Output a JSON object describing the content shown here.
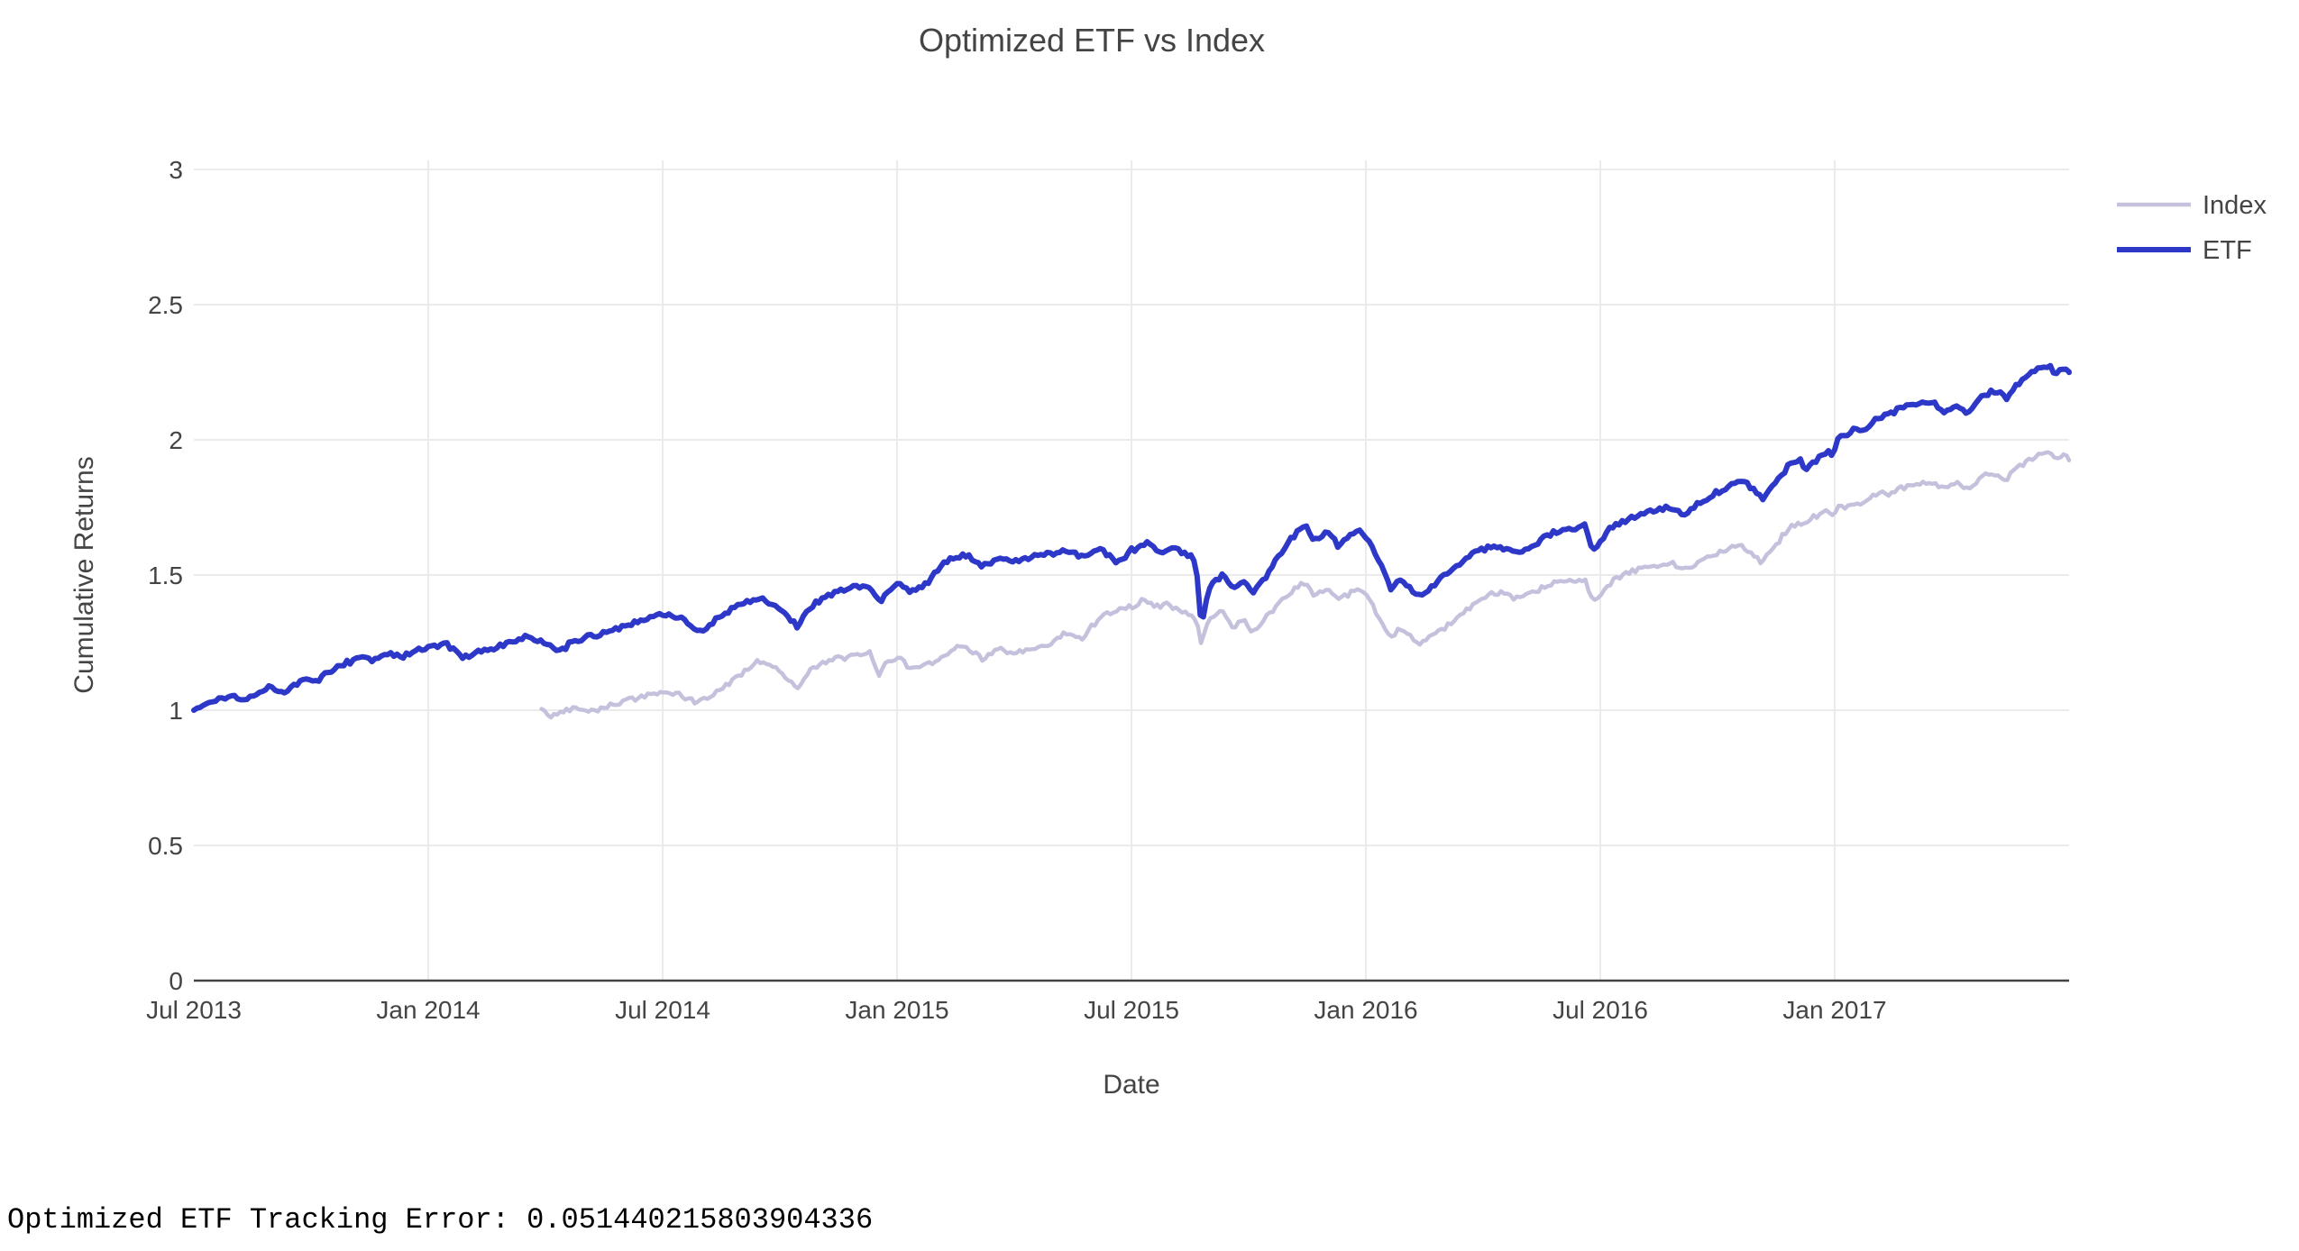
{
  "title": "Optimized ETF vs Index",
  "footer": {
    "tracking_error_text": "Optimized ETF Tracking Error: 0.051440215803904336"
  },
  "chart_data": {
    "type": "line",
    "title": "Optimized ETF vs Index",
    "xlabel": "Date",
    "ylabel": "Cumulative Returns",
    "x_unit": "months since Jul 2013",
    "xlim": [
      0,
      48
    ],
    "ylim": [
      0,
      3
    ],
    "grid": true,
    "legend_position": "right-top",
    "x_ticks": [
      {
        "m": 0,
        "label": "Jul 2013"
      },
      {
        "m": 6,
        "label": "Jan 2014"
      },
      {
        "m": 12,
        "label": "Jul 2014"
      },
      {
        "m": 18,
        "label": "Jan 2015"
      },
      {
        "m": 24,
        "label": "Jul 2015"
      },
      {
        "m": 30,
        "label": "Jan 2016"
      },
      {
        "m": 36,
        "label": "Jul 2016"
      },
      {
        "m": 42,
        "label": "Jan 2017"
      }
    ],
    "y_ticks": [
      {
        "v": 0,
        "label": "0"
      },
      {
        "v": 0.5,
        "label": "0.5"
      },
      {
        "v": 1,
        "label": "1"
      },
      {
        "v": 1.5,
        "label": "1.5"
      },
      {
        "v": 2,
        "label": "2"
      },
      {
        "v": 2.5,
        "label": "2.5"
      },
      {
        "v": 3,
        "label": "3"
      }
    ],
    "tracking_error": 0.051440215803904336,
    "series": [
      {
        "name": "Index",
        "color": "#c4c1dd",
        "stroke_width": 4.5,
        "points": [
          [
            8.9,
            1.005
          ],
          [
            9.15,
            0.975
          ],
          [
            9.5,
            1.0
          ],
          [
            9.8,
            1.012
          ],
          [
            10.1,
            0.998
          ],
          [
            10.5,
            1.012
          ],
          [
            10.9,
            1.028
          ],
          [
            11.3,
            1.045
          ],
          [
            11.7,
            1.058
          ],
          [
            12.1,
            1.068
          ],
          [
            12.5,
            1.05
          ],
          [
            12.9,
            1.028
          ],
          [
            13.3,
            1.06
          ],
          [
            13.7,
            1.1
          ],
          [
            14.1,
            1.145
          ],
          [
            14.45,
            1.185
          ],
          [
            14.8,
            1.165
          ],
          [
            15.1,
            1.13
          ],
          [
            15.45,
            1.085
          ],
          [
            15.8,
            1.15
          ],
          [
            16.2,
            1.18
          ],
          [
            16.6,
            1.195
          ],
          [
            17.0,
            1.2
          ],
          [
            17.3,
            1.21
          ],
          [
            17.55,
            1.135
          ],
          [
            17.8,
            1.185
          ],
          [
            18.05,
            1.2
          ],
          [
            18.3,
            1.155
          ],
          [
            18.6,
            1.165
          ],
          [
            19.0,
            1.185
          ],
          [
            19.4,
            1.225
          ],
          [
            19.8,
            1.235
          ],
          [
            20.2,
            1.19
          ],
          [
            20.6,
            1.225
          ],
          [
            21.0,
            1.205
          ],
          [
            21.4,
            1.225
          ],
          [
            21.9,
            1.24
          ],
          [
            22.3,
            1.285
          ],
          [
            22.7,
            1.265
          ],
          [
            23.2,
            1.345
          ],
          [
            23.6,
            1.37
          ],
          [
            24.0,
            1.385
          ],
          [
            24.3,
            1.405
          ],
          [
            24.6,
            1.385
          ],
          [
            24.9,
            1.39
          ],
          [
            25.2,
            1.375
          ],
          [
            25.4,
            1.36
          ],
          [
            25.65,
            1.33
          ],
          [
            25.78,
            1.255
          ],
          [
            25.95,
            1.32
          ],
          [
            26.1,
            1.35
          ],
          [
            26.35,
            1.37
          ],
          [
            26.6,
            1.3
          ],
          [
            26.85,
            1.34
          ],
          [
            27.1,
            1.285
          ],
          [
            27.5,
            1.35
          ],
          [
            27.9,
            1.42
          ],
          [
            28.2,
            1.45
          ],
          [
            28.45,
            1.475
          ],
          [
            28.7,
            1.42
          ],
          [
            29.0,
            1.455
          ],
          [
            29.3,
            1.4
          ],
          [
            29.6,
            1.435
          ],
          [
            29.85,
            1.445
          ],
          [
            30.1,
            1.415
          ],
          [
            30.4,
            1.32
          ],
          [
            30.65,
            1.265
          ],
          [
            30.85,
            1.3
          ],
          [
            31.05,
            1.285
          ],
          [
            31.35,
            1.24
          ],
          [
            31.65,
            1.27
          ],
          [
            31.95,
            1.3
          ],
          [
            32.3,
            1.34
          ],
          [
            32.7,
            1.385
          ],
          [
            33.1,
            1.425
          ],
          [
            33.5,
            1.43
          ],
          [
            33.9,
            1.41
          ],
          [
            34.3,
            1.435
          ],
          [
            34.7,
            1.465
          ],
          [
            35.0,
            1.475
          ],
          [
            35.3,
            1.48
          ],
          [
            35.6,
            1.49
          ],
          [
            35.82,
            1.4
          ],
          [
            36.05,
            1.435
          ],
          [
            36.3,
            1.475
          ],
          [
            36.6,
            1.5
          ],
          [
            37.0,
            1.525
          ],
          [
            37.4,
            1.53
          ],
          [
            37.8,
            1.545
          ],
          [
            38.1,
            1.52
          ],
          [
            38.5,
            1.55
          ],
          [
            38.9,
            1.575
          ],
          [
            39.3,
            1.6
          ],
          [
            39.6,
            1.615
          ],
          [
            39.9,
            1.58
          ],
          [
            40.15,
            1.545
          ],
          [
            40.45,
            1.6
          ],
          [
            40.85,
            1.68
          ],
          [
            41.1,
            1.69
          ],
          [
            41.3,
            1.7
          ],
          [
            41.55,
            1.72
          ],
          [
            41.8,
            1.73
          ],
          [
            41.95,
            1.725
          ],
          [
            42.1,
            1.755
          ],
          [
            42.3,
            1.75
          ],
          [
            42.55,
            1.77
          ],
          [
            42.75,
            1.765
          ],
          [
            43.0,
            1.8
          ],
          [
            43.4,
            1.8
          ],
          [
            43.8,
            1.825
          ],
          [
            44.2,
            1.84
          ],
          [
            44.5,
            1.845
          ],
          [
            44.8,
            1.82
          ],
          [
            45.1,
            1.84
          ],
          [
            45.4,
            1.815
          ],
          [
            45.8,
            1.865
          ],
          [
            46.1,
            1.875
          ],
          [
            46.4,
            1.855
          ],
          [
            46.7,
            1.9
          ],
          [
            47.0,
            1.925
          ],
          [
            47.3,
            1.945
          ],
          [
            47.5,
            1.955
          ],
          [
            47.65,
            1.92
          ],
          [
            47.85,
            1.95
          ],
          [
            48,
            1.925
          ]
        ]
      },
      {
        "name": "ETF",
        "color": "#2d37c8",
        "stroke_width": 6,
        "points": [
          [
            0,
            1.0
          ],
          [
            0.35,
            1.025
          ],
          [
            0.7,
            1.045
          ],
          [
            1.0,
            1.055
          ],
          [
            1.25,
            1.04
          ],
          [
            1.6,
            1.065
          ],
          [
            2.0,
            1.085
          ],
          [
            2.35,
            1.07
          ],
          [
            2.8,
            1.12
          ],
          [
            3.1,
            1.1
          ],
          [
            3.5,
            1.145
          ],
          [
            3.9,
            1.175
          ],
          [
            4.3,
            1.2
          ],
          [
            4.6,
            1.185
          ],
          [
            5.0,
            1.21
          ],
          [
            5.35,
            1.195
          ],
          [
            5.7,
            1.225
          ],
          [
            6.1,
            1.235
          ],
          [
            6.45,
            1.245
          ],
          [
            6.9,
            1.195
          ],
          [
            7.3,
            1.215
          ],
          [
            7.7,
            1.23
          ],
          [
            8.1,
            1.25
          ],
          [
            8.5,
            1.27
          ],
          [
            8.9,
            1.25
          ],
          [
            9.35,
            1.22
          ],
          [
            9.8,
            1.26
          ],
          [
            10.2,
            1.275
          ],
          [
            10.6,
            1.295
          ],
          [
            11.0,
            1.31
          ],
          [
            11.4,
            1.33
          ],
          [
            11.8,
            1.35
          ],
          [
            12.2,
            1.36
          ],
          [
            12.6,
            1.325
          ],
          [
            12.95,
            1.29
          ],
          [
            13.3,
            1.325
          ],
          [
            13.7,
            1.37
          ],
          [
            14.1,
            1.4
          ],
          [
            14.45,
            1.415
          ],
          [
            14.8,
            1.395
          ],
          [
            15.1,
            1.36
          ],
          [
            15.45,
            1.31
          ],
          [
            15.8,
            1.385
          ],
          [
            16.2,
            1.42
          ],
          [
            16.6,
            1.445
          ],
          [
            17.0,
            1.455
          ],
          [
            17.3,
            1.465
          ],
          [
            17.55,
            1.4
          ],
          [
            17.8,
            1.445
          ],
          [
            18.05,
            1.47
          ],
          [
            18.3,
            1.435
          ],
          [
            18.6,
            1.45
          ],
          [
            19.0,
            1.51
          ],
          [
            19.4,
            1.565
          ],
          [
            19.8,
            1.575
          ],
          [
            20.2,
            1.53
          ],
          [
            20.6,
            1.565
          ],
          [
            21.0,
            1.545
          ],
          [
            21.4,
            1.565
          ],
          [
            21.9,
            1.575
          ],
          [
            22.3,
            1.595
          ],
          [
            22.7,
            1.57
          ],
          [
            23.2,
            1.6
          ],
          [
            23.6,
            1.545
          ],
          [
            24.0,
            1.59
          ],
          [
            24.45,
            1.615
          ],
          [
            24.8,
            1.585
          ],
          [
            25.1,
            1.6
          ],
          [
            25.4,
            1.585
          ],
          [
            25.65,
            1.55
          ],
          [
            25.78,
            1.31
          ],
          [
            25.95,
            1.43
          ],
          [
            26.1,
            1.47
          ],
          [
            26.35,
            1.5
          ],
          [
            26.6,
            1.44
          ],
          [
            26.85,
            1.48
          ],
          [
            27.1,
            1.43
          ],
          [
            27.5,
            1.51
          ],
          [
            27.9,
            1.6
          ],
          [
            28.2,
            1.655
          ],
          [
            28.45,
            1.685
          ],
          [
            28.7,
            1.625
          ],
          [
            29.0,
            1.66
          ],
          [
            29.3,
            1.605
          ],
          [
            29.6,
            1.645
          ],
          [
            29.85,
            1.655
          ],
          [
            30.1,
            1.625
          ],
          [
            30.4,
            1.53
          ],
          [
            30.65,
            1.445
          ],
          [
            30.85,
            1.49
          ],
          [
            31.05,
            1.47
          ],
          [
            31.35,
            1.42
          ],
          [
            31.65,
            1.455
          ],
          [
            31.95,
            1.49
          ],
          [
            32.3,
            1.53
          ],
          [
            32.7,
            1.575
          ],
          [
            33.1,
            1.6
          ],
          [
            33.5,
            1.605
          ],
          [
            33.9,
            1.58
          ],
          [
            34.3,
            1.61
          ],
          [
            34.7,
            1.65
          ],
          [
            35.0,
            1.66
          ],
          [
            35.3,
            1.67
          ],
          [
            35.6,
            1.685
          ],
          [
            35.82,
            1.59
          ],
          [
            36.05,
            1.635
          ],
          [
            36.3,
            1.675
          ],
          [
            36.6,
            1.7
          ],
          [
            37.0,
            1.725
          ],
          [
            37.4,
            1.735
          ],
          [
            37.8,
            1.75
          ],
          [
            38.1,
            1.725
          ],
          [
            38.5,
            1.765
          ],
          [
            38.9,
            1.8
          ],
          [
            39.3,
            1.835
          ],
          [
            39.6,
            1.855
          ],
          [
            39.9,
            1.82
          ],
          [
            40.15,
            1.78
          ],
          [
            40.45,
            1.84
          ],
          [
            40.85,
            1.91
          ],
          [
            41.1,
            1.925
          ],
          [
            41.3,
            1.89
          ],
          [
            41.55,
            1.93
          ],
          [
            41.8,
            1.955
          ],
          [
            41.95,
            1.95
          ],
          [
            42.1,
            2.02
          ],
          [
            42.3,
            2.01
          ],
          [
            42.55,
            2.04
          ],
          [
            42.75,
            2.035
          ],
          [
            43.0,
            2.07
          ],
          [
            43.4,
            2.1
          ],
          [
            43.8,
            2.125
          ],
          [
            44.2,
            2.14
          ],
          [
            44.5,
            2.145
          ],
          [
            44.8,
            2.1
          ],
          [
            45.1,
            2.13
          ],
          [
            45.4,
            2.09
          ],
          [
            45.8,
            2.16
          ],
          [
            46.1,
            2.185
          ],
          [
            46.4,
            2.16
          ],
          [
            46.7,
            2.21
          ],
          [
            47.0,
            2.25
          ],
          [
            47.3,
            2.265
          ],
          [
            47.5,
            2.27
          ],
          [
            47.65,
            2.24
          ],
          [
            47.85,
            2.26
          ],
          [
            48,
            2.25
          ]
        ]
      }
    ]
  },
  "colors": {
    "text": "#444444",
    "gridline": "#ebebeb",
    "axis_line": "#444444",
    "background": "#ffffff",
    "etf_line": "#2d37c8",
    "index_line": "#c4c1dd",
    "footer_text": "#000000"
  }
}
